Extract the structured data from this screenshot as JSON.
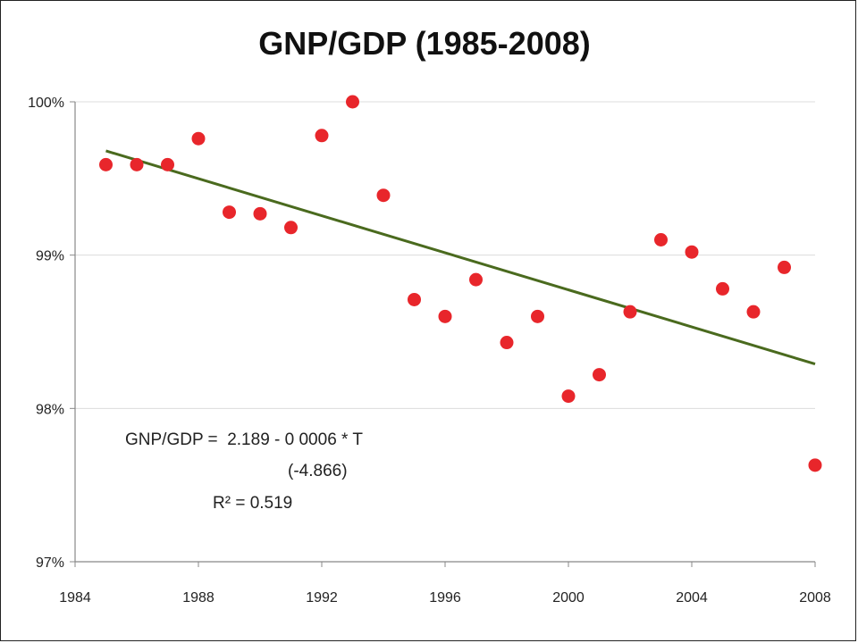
{
  "chart_data": {
    "type": "scatter",
    "title": "GNP/GDP (1985-2008)",
    "xlabel": "",
    "ylabel": "",
    "xlim": [
      1984,
      2008
    ],
    "ylim": [
      0.97,
      1.0
    ],
    "x_ticks": [
      1984,
      1988,
      1992,
      1996,
      2000,
      2004,
      2008
    ],
    "x_tick_labels": [
      "1984",
      "1988",
      "1992",
      "1996",
      "2000",
      "2004",
      "2008"
    ],
    "y_ticks": [
      0.97,
      0.98,
      0.99,
      1.0
    ],
    "y_tick_labels": [
      "97%",
      "98%",
      "99%",
      "100%"
    ],
    "grid": true,
    "series": [
      {
        "color": "#e8262b",
        "points": [
          {
            "x": 1985,
            "y": 0.9959
          },
          {
            "x": 1986,
            "y": 0.9959
          },
          {
            "x": 1987,
            "y": 0.9959
          },
          {
            "x": 1988,
            "y": 0.9976
          },
          {
            "x": 1989,
            "y": 0.9928
          },
          {
            "x": 1990,
            "y": 0.9927
          },
          {
            "x": 1991,
            "y": 0.9918
          },
          {
            "x": 1992,
            "y": 0.9978
          },
          {
            "x": 1993,
            "y": 1.0
          },
          {
            "x": 1994,
            "y": 0.9939
          },
          {
            "x": 1995,
            "y": 0.9871
          },
          {
            "x": 1996,
            "y": 0.986
          },
          {
            "x": 1997,
            "y": 0.9884
          },
          {
            "x": 1998,
            "y": 0.9843
          },
          {
            "x": 1999,
            "y": 0.986
          },
          {
            "x": 2000,
            "y": 0.9808
          },
          {
            "x": 2001,
            "y": 0.9822
          },
          {
            "x": 2002,
            "y": 0.9863
          },
          {
            "x": 2003,
            "y": 0.991
          },
          {
            "x": 2004,
            "y": 0.9902
          },
          {
            "x": 2005,
            "y": 0.9878
          },
          {
            "x": 2006,
            "y": 0.9863
          },
          {
            "x": 2007,
            "y": 0.9892
          },
          {
            "x": 2008,
            "y": 0.9763
          }
        ]
      }
    ],
    "trendline": {
      "color": "#4a6a1e",
      "start": {
        "x": 1985,
        "y": 0.9968
      },
      "end": {
        "x": 2008,
        "y": 0.9829
      }
    },
    "annotations": {
      "equation": "GNP/GDP =  2.189 - 0 0006 * T",
      "t_stat": "(-4.866)",
      "r_squared": "R² = 0.519"
    }
  }
}
